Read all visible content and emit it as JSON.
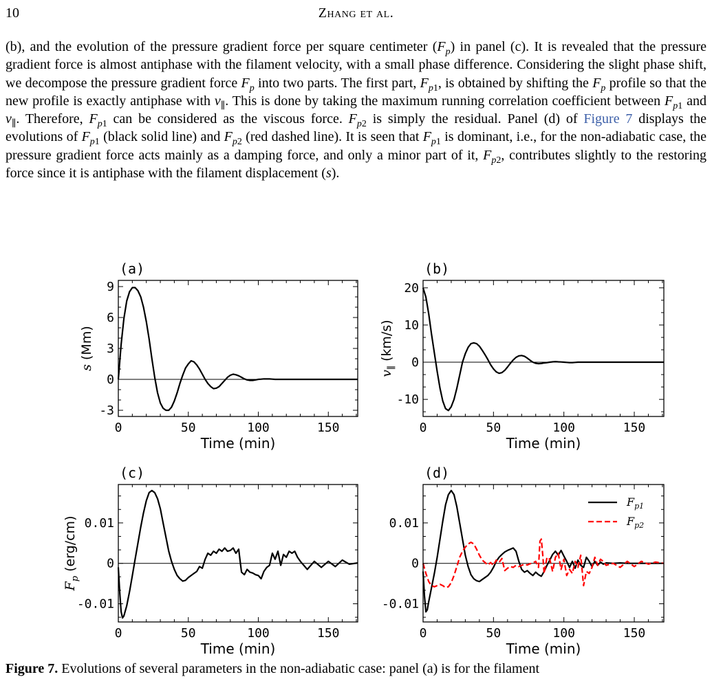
{
  "header": {
    "page_number": "10",
    "running_head": "Zhang et al."
  },
  "paragraph": {
    "s1": "(b), and the evolution of the pressure gradient force per square centimeter (",
    "s2": ") in panel (c). It is revealed that the pressure gradient force is almost antiphase with the filament velocity, with a small phase difference. Considering the slight phase shift, we decompose the pressure gradient force ",
    "s3": " into two parts. The first part, ",
    "s4": ", is obtained by shifting the ",
    "s5": " profile so that the new profile is exactly antiphase with ",
    "s6": ". This is done by taking the maximum running correlation coefficient between ",
    "s7": " and ",
    "s8": ". Therefore, ",
    "s9": " can be considered as the viscous force. ",
    "s10": " is simply the residual. Panel (d) of ",
    "fig_ref": "Figure 7",
    "s11": " displays the evolutions of ",
    "s12": " (black solid line) and ",
    "s13": " (red dashed line). It is seen that ",
    "s14": " is dominant, i.e., for the non-adiabatic case, the pressure gradient force acts mainly as a damping force, and only a minor part of it, ",
    "s15": ", contributes slightly to the restoring force since it is antiphase with the filament displacement (",
    "s16": ")."
  },
  "caption": {
    "label": "Figure 7.",
    "text": " Evolutions of several parameters in the non-adiabatic case: panel (a) is for the filament"
  },
  "colors": {
    "series1": "#000000",
    "series2": "#ff0000"
  },
  "chart_data": [
    {
      "type": "line",
      "panel": "(a)",
      "xlabel": "Time (min)",
      "ylabel": "s (Mm)",
      "xlim": [
        0,
        171
      ],
      "ylim": [
        -3.6,
        9.6
      ],
      "xticks": [
        0,
        50,
        100,
        150
      ],
      "yticks": [
        -3,
        0,
        3,
        6,
        9
      ],
      "yticklabels": [
        "-3",
        "0",
        "3",
        "6",
        "9"
      ],
      "zero_line": true,
      "legend": false,
      "series": [
        {
          "color": "#000000",
          "dash": "solid",
          "x": [
            0,
            2,
            4,
            6,
            8,
            10,
            12,
            14,
            16,
            18,
            20,
            22,
            24,
            26,
            28,
            30,
            32,
            34,
            36,
            38,
            40,
            42,
            44,
            46,
            48,
            50,
            52,
            54,
            56,
            58,
            60,
            62,
            64,
            66,
            68,
            70,
            72,
            74,
            76,
            78,
            80,
            82,
            84,
            86,
            88,
            90,
            92,
            94,
            96,
            98,
            100,
            102,
            104,
            106,
            108,
            110,
            112,
            114,
            116,
            118,
            120,
            122,
            124,
            126,
            128,
            130,
            135,
            140,
            145,
            150,
            155,
            160,
            165,
            171
          ],
          "y": [
            0,
            3.4,
            5.9,
            7.6,
            8.5,
            8.9,
            8.9,
            8.6,
            8.0,
            7.0,
            5.6,
            3.9,
            2.0,
            0.2,
            -1.3,
            -2.3,
            -2.8,
            -3.0,
            -3.0,
            -2.7,
            -2.1,
            -1.3,
            -0.4,
            0.4,
            1.1,
            1.5,
            1.8,
            1.7,
            1.4,
            1.0,
            0.5,
            0.0,
            -0.4,
            -0.7,
            -0.9,
            -0.85,
            -0.7,
            -0.4,
            -0.1,
            0.2,
            0.4,
            0.5,
            0.45,
            0.35,
            0.2,
            0.05,
            -0.05,
            -0.1,
            -0.1,
            -0.05,
            0.0,
            0.02,
            0.05,
            0.05,
            0.04,
            0.02,
            0.0,
            0.0,
            0.0,
            0.0,
            0.0,
            0.0,
            0.0,
            0.0,
            0.0,
            0.0,
            0.0,
            0.0,
            0.0,
            0.0,
            0.0,
            0.0,
            0.0,
            0.0
          ]
        }
      ]
    },
    {
      "type": "line",
      "panel": "(b)",
      "xlabel": "Time (min)",
      "ylabel": "v∥ (km/s)",
      "xlim": [
        0,
        171
      ],
      "ylim": [
        -14.6,
        22
      ],
      "xticks": [
        0,
        50,
        100,
        150
      ],
      "yticks": [
        -10,
        0,
        10,
        20
      ],
      "yticklabels": [
        "-10",
        "0",
        "10",
        "20"
      ],
      "zero_line": true,
      "legend": false,
      "series": [
        {
          "color": "#000000",
          "dash": "solid",
          "x": [
            0,
            2,
            4,
            6,
            8,
            10,
            12,
            14,
            16,
            18,
            20,
            22,
            24,
            26,
            28,
            30,
            32,
            34,
            36,
            38,
            40,
            42,
            44,
            46,
            48,
            50,
            52,
            54,
            56,
            58,
            60,
            62,
            64,
            66,
            68,
            70,
            72,
            74,
            76,
            78,
            80,
            82,
            84,
            86,
            88,
            90,
            92,
            94,
            96,
            98,
            100,
            102,
            104,
            106,
            108,
            110,
            112,
            114,
            116,
            118,
            120,
            122,
            124,
            126,
            128,
            130,
            135,
            140,
            145,
            150,
            155,
            160,
            165,
            171
          ],
          "y": [
            20,
            17.5,
            13,
            7.5,
            2.5,
            -2.5,
            -7,
            -10.5,
            -12.5,
            -13,
            -12,
            -10,
            -7,
            -3.5,
            0,
            2.3,
            4,
            5,
            5.2,
            5,
            4.3,
            3.2,
            2,
            0.7,
            -0.7,
            -1.8,
            -2.6,
            -3,
            -2.8,
            -2.2,
            -1.3,
            -0.3,
            0.6,
            1.3,
            1.7,
            1.8,
            1.6,
            1.1,
            0.5,
            0,
            -0.3,
            -0.4,
            -0.35,
            -0.2,
            -0.1,
            0,
            0.1,
            0.15,
            0.1,
            0.05,
            0,
            -0.05,
            -0.1,
            -0.1,
            -0.05,
            0,
            0,
            0,
            0,
            0,
            0,
            0,
            0,
            0,
            0,
            0,
            0,
            0,
            0,
            0,
            0,
            0,
            0,
            0
          ]
        }
      ]
    },
    {
      "type": "line",
      "panel": "(c)",
      "xlabel": "Time (min)",
      "ylabel": "Fp (erg/cm)",
      "xlim": [
        0,
        171
      ],
      "ylim": [
        -0.0145,
        0.0195
      ],
      "xticks": [
        0,
        50,
        100,
        150
      ],
      "yticks": [
        -0.01,
        0,
        0.01
      ],
      "yticklabels": [
        "-0.01",
        "0",
        "0.01"
      ],
      "zero_line": true,
      "legend": false,
      "series": [
        {
          "color": "#000000",
          "dash": "solid",
          "x": [
            0,
            1,
            2,
            3,
            4,
            6,
            8,
            10,
            12,
            14,
            16,
            18,
            20,
            22,
            24,
            26,
            28,
            30,
            32,
            34,
            36,
            38,
            40,
            42,
            44,
            46,
            48,
            50,
            52,
            54,
            56,
            58,
            60,
            62,
            64,
            66,
            68,
            70,
            72,
            74,
            76,
            78,
            80,
            82,
            84,
            86,
            87,
            88,
            90,
            92,
            94,
            96,
            98,
            100,
            102,
            104,
            106,
            108,
            110,
            112,
            114,
            116,
            118,
            120,
            122,
            124,
            126,
            128,
            130,
            135,
            140,
            145,
            150,
            155,
            160,
            165,
            171
          ],
          "y": [
            -0.001,
            -0.007,
            -0.012,
            -0.0135,
            -0.013,
            -0.0105,
            -0.007,
            -0.003,
            0.001,
            0.005,
            0.009,
            0.0125,
            0.0155,
            0.0175,
            0.018,
            0.0175,
            0.016,
            0.0135,
            0.01,
            0.0065,
            0.003,
            0.0005,
            -0.0015,
            -0.003,
            -0.0038,
            -0.0044,
            -0.0042,
            -0.0035,
            -0.003,
            -0.0025,
            -0.002,
            -0.0008,
            -0.0012,
            0.001,
            0.0025,
            0.002,
            0.003,
            0.0025,
            0.0035,
            0.003,
            0.0038,
            0.003,
            0.0032,
            0.0038,
            0.0025,
            0.0035,
            0.0005,
            -0.0022,
            -0.0028,
            -0.0015,
            -0.0022,
            -0.0024,
            -0.0028,
            -0.003,
            -0.0038,
            -0.002,
            -0.001,
            -0.0005,
            0.0025,
            0.001,
            0.003,
            -0.0005,
            0.0022,
            0.0015,
            0.003,
            0.0025,
            0.003,
            0.0015,
            0.0005,
            -0.0015,
            0.0005,
            -0.001,
            0.0005,
            -0.0008,
            0.0008,
            -0.0002,
            0.0001
          ]
        }
      ]
    },
    {
      "type": "line",
      "panel": "(d)",
      "xlabel": "Time (min)",
      "ylabel": "",
      "xlim": [
        0,
        171
      ],
      "ylim": [
        -0.0145,
        0.0195
      ],
      "xticks": [
        0,
        50,
        100,
        150
      ],
      "yticks": [
        -0.01,
        0,
        0.01
      ],
      "yticklabels": [
        "-0.01",
        "0",
        "0.01"
      ],
      "zero_line": true,
      "legend": "top-right",
      "series": [
        {
          "name": "Fp1",
          "color": "#000000",
          "dash": "solid",
          "x": [
            0,
            1,
            2,
            3,
            4,
            6,
            8,
            10,
            12,
            14,
            16,
            18,
            20,
            22,
            24,
            26,
            28,
            30,
            32,
            34,
            36,
            38,
            40,
            42,
            44,
            46,
            48,
            50,
            52,
            54,
            56,
            58,
            60,
            62,
            64,
            66,
            68,
            70,
            72,
            74,
            76,
            78,
            80,
            82,
            84,
            86,
            88,
            90,
            92,
            94,
            96,
            98,
            100,
            102,
            104,
            106,
            108,
            110,
            112,
            114,
            116,
            118,
            120,
            122,
            124,
            126,
            128,
            130,
            135,
            140,
            145,
            150,
            155,
            160,
            165,
            171
          ],
          "y": [
            -0.002,
            -0.008,
            -0.012,
            -0.0115,
            -0.0095,
            -0.006,
            -0.0025,
            0.0015,
            0.006,
            0.0105,
            0.0145,
            0.017,
            0.018,
            0.017,
            0.014,
            0.01,
            0.006,
            0.002,
            -0.0008,
            -0.0028,
            -0.0038,
            -0.0043,
            -0.0045,
            -0.004,
            -0.0035,
            -0.003,
            -0.0022,
            -0.001,
            0.0005,
            0.0015,
            0.0022,
            0.0028,
            0.0032,
            0.0035,
            0.0038,
            0.003,
            0.0005,
            -0.0015,
            -0.0022,
            -0.0018,
            -0.0025,
            -0.003,
            -0.0022,
            -0.0028,
            -0.0032,
            -0.002,
            -0.0005,
            0.0008,
            0.0022,
            0.003,
            0.002,
            0.0032,
            0.0018,
            0.0005,
            -0.001,
            0.0005,
            -0.0012,
            0.0008,
            -0.0005,
            -0.001,
            0.0015,
            0.0005,
            -0.0008,
            0.0005,
            -0.0005,
            0.0003,
            -0.0002,
            0.0001,
            0,
            0.0001,
            0,
            0,
            0,
            0,
            0,
            0
          ]
        },
        {
          "name": "Fp2",
          "color": "#ff0000",
          "dash": "dashed",
          "x": [
            0,
            2,
            4,
            6,
            8,
            10,
            12,
            14,
            16,
            18,
            20,
            22,
            24,
            26,
            28,
            30,
            32,
            34,
            36,
            38,
            40,
            42,
            44,
            46,
            48,
            50,
            52,
            54,
            56,
            58,
            60,
            62,
            64,
            66,
            68,
            70,
            72,
            74,
            76,
            78,
            80,
            82,
            83,
            84,
            85,
            86,
            88,
            90,
            92,
            94,
            96,
            98,
            100,
            102,
            104,
            106,
            108,
            110,
            112,
            114,
            116,
            118,
            120,
            122,
            124,
            126,
            128,
            130,
            135,
            140,
            145,
            150,
            155,
            160,
            165,
            171
          ],
          "y": [
            0,
            -0.0025,
            -0.0045,
            -0.0055,
            -0.0058,
            -0.0055,
            -0.0052,
            -0.0055,
            -0.006,
            -0.0058,
            -0.0048,
            -0.003,
            -0.0008,
            0.0015,
            0.003,
            0.004,
            0.0048,
            0.0052,
            0.0048,
            0.0035,
            0.002,
            0.0008,
            0.0002,
            -0.0004,
            0.0002,
            -0.0005,
            0.0008,
            0.0002,
            0.0012,
            -0.0018,
            -0.0012,
            -0.0008,
            -0.001,
            -0.0005,
            -0.0008,
            -0.0005,
            -0.0002,
            -0.0004,
            -0.0001,
            0.0001,
            0.0005,
            -0.001,
            0.0055,
            0.006,
            0.002,
            -0.0025,
            0.0015,
            0.001,
            -0.002,
            0.0015,
            0.0025,
            -0.0015,
            0.001,
            -0.003,
            -0.0015,
            -0.0025,
            0.0005,
            -0.001,
            0.002,
            -0.0055,
            -0.002,
            -0.0025,
            -0.001,
            0.0015,
            -0.0005,
            0.001,
            0.0005,
            -0.0005,
            0,
            -0.001,
            0.0005,
            -0.0008,
            0.0005,
            -0.0002,
            0.0003,
            0
          ]
        }
      ]
    }
  ]
}
